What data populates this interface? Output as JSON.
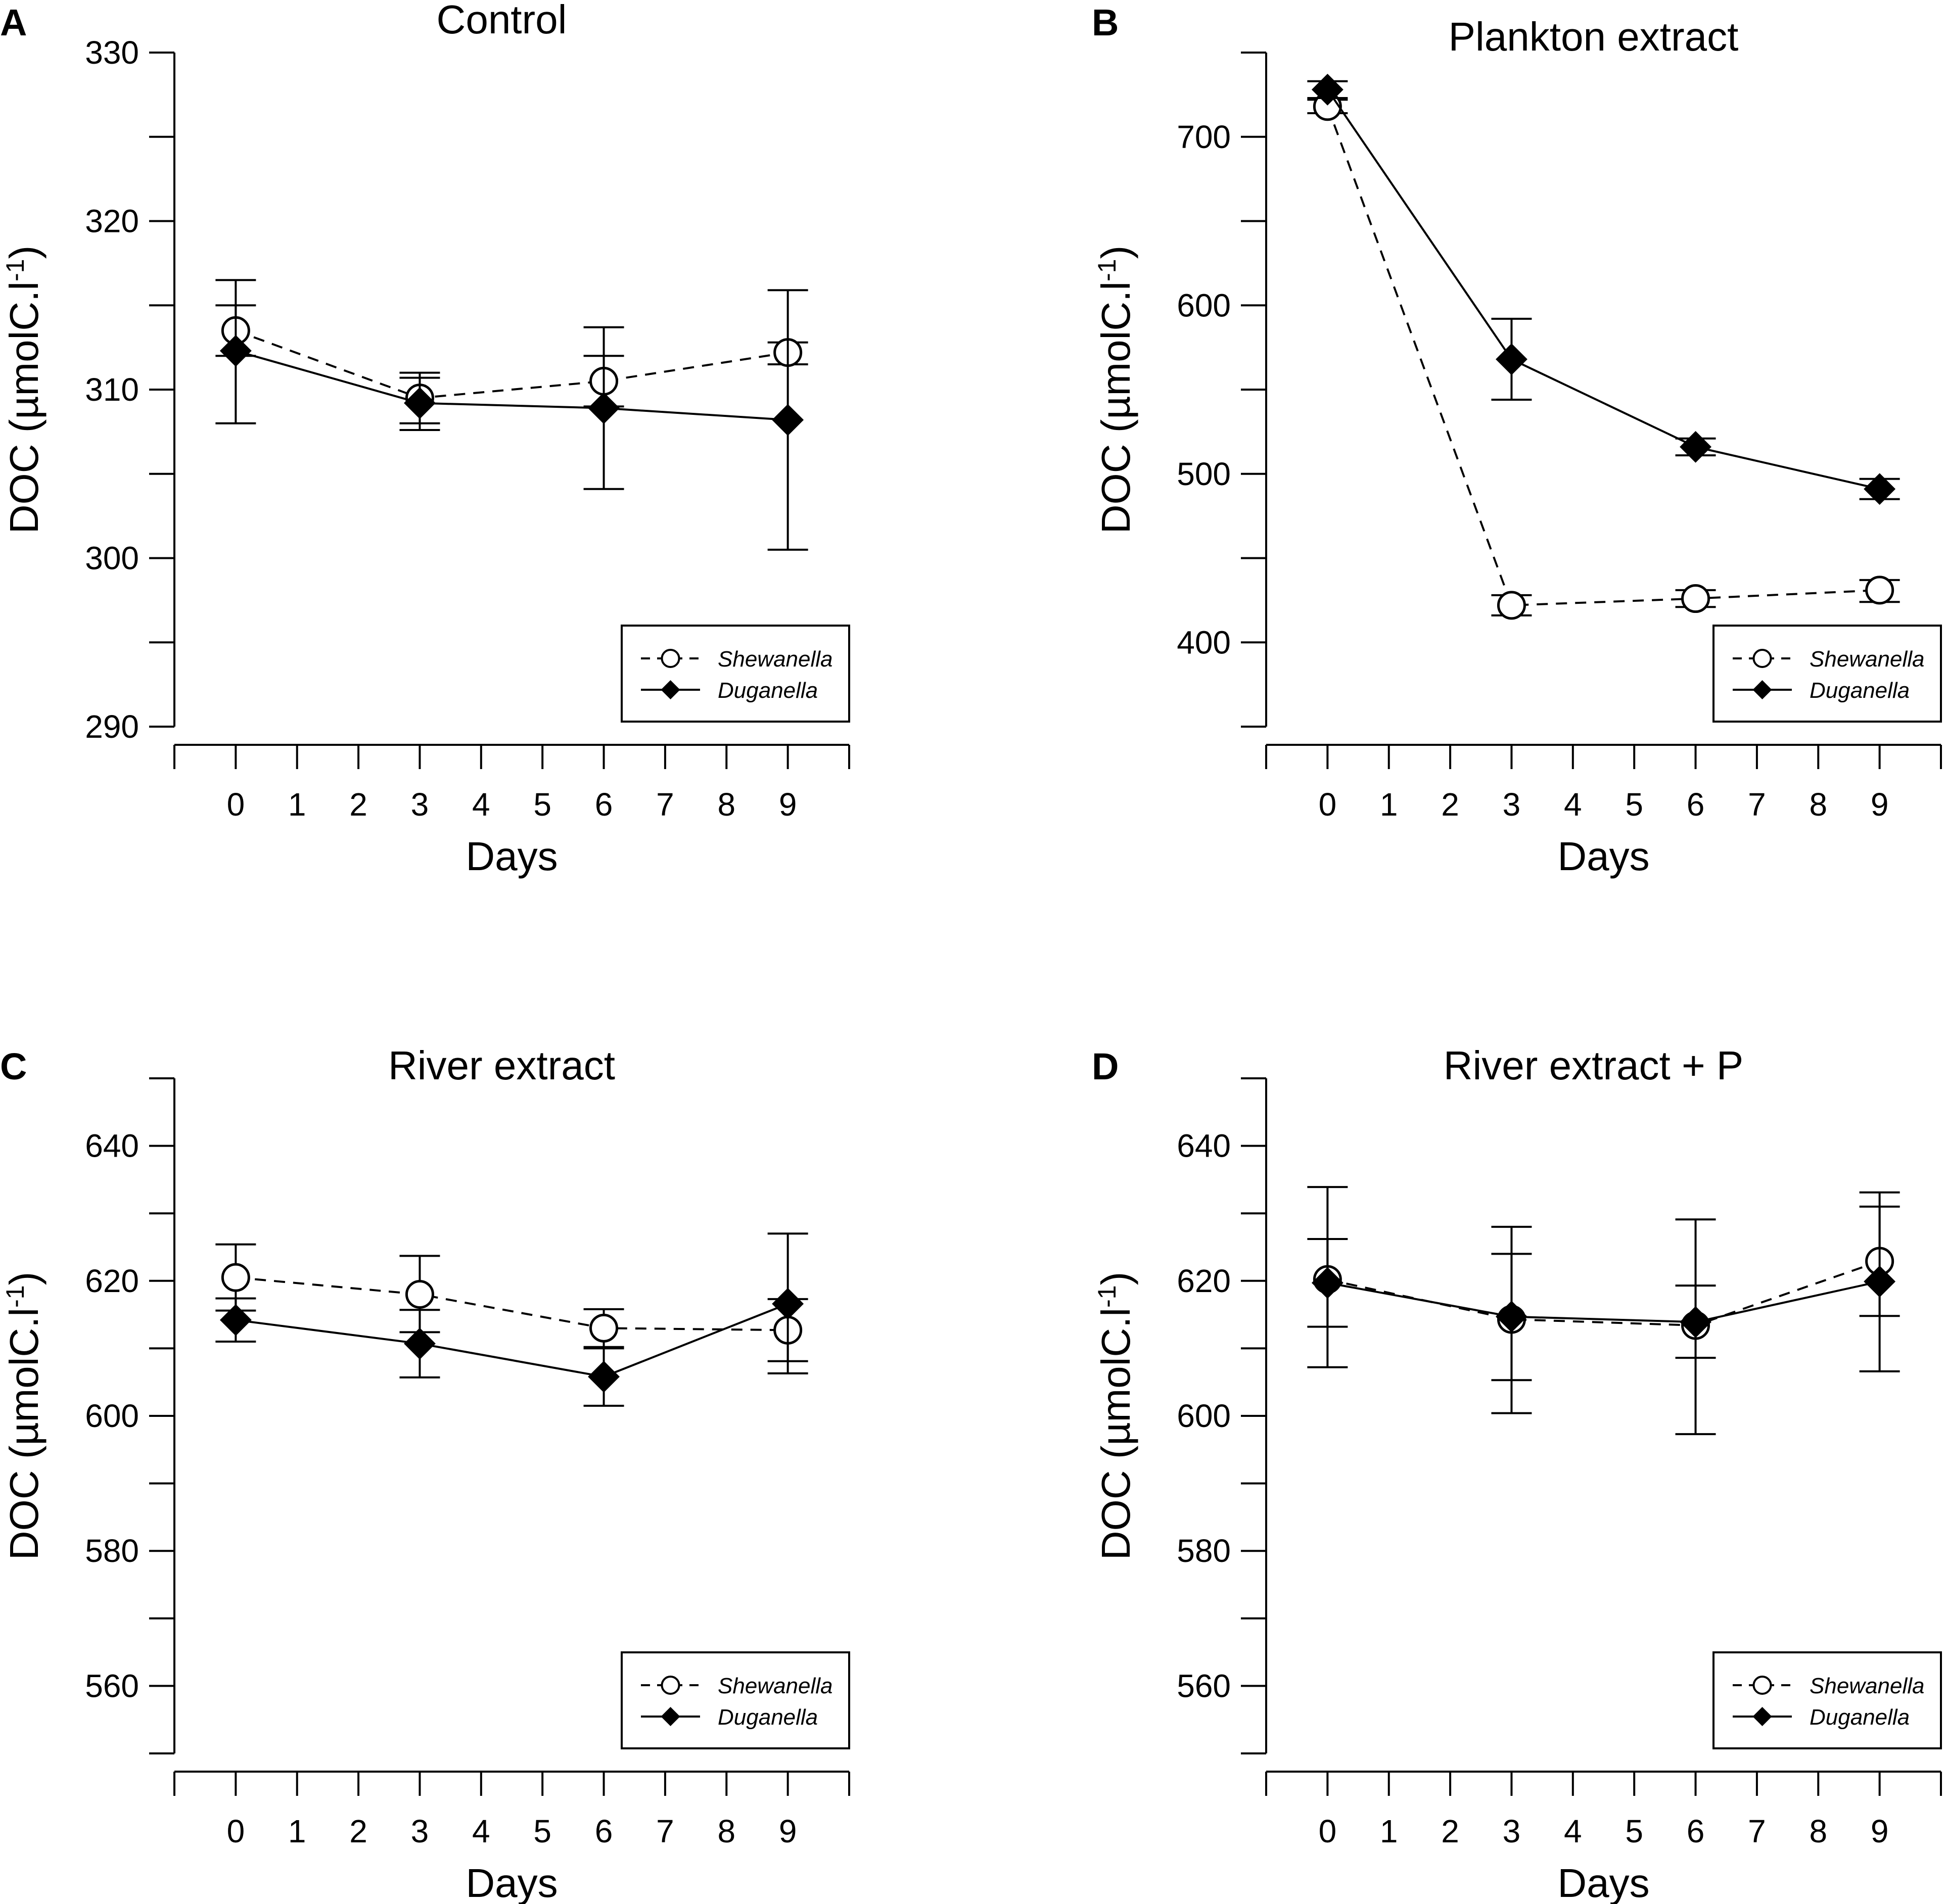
{
  "chart_data": [
    {
      "type": "line",
      "panel_label": "A",
      "title": "Control",
      "xlabel": "Days",
      "ylabel": "DOC (µmolC.l",
      "ylabel_superscript": "-1",
      "ylabel_close": ")",
      "xlim": [
        -1,
        10
      ],
      "ylim": [
        290,
        330
      ],
      "x_ticks": [
        0,
        1,
        2,
        3,
        4,
        5,
        6,
        7,
        8,
        9
      ],
      "y_ticks_labeled": [
        290,
        300,
        310,
        320,
        330
      ],
      "y_ticks_minor": [
        295,
        305,
        315,
        325
      ],
      "legend_position": "bottom-right",
      "series": [
        {
          "name": "Shewanella",
          "marker": "open-circle",
          "line": "dashed",
          "x": [
            0,
            3,
            6,
            9
          ],
          "y": [
            313.5,
            309.5,
            310.5,
            312.2
          ],
          "yerr_low": [
            312.0,
            308.0,
            309.0,
            311.5
          ],
          "yerr_high": [
            315.0,
            311.0,
            312.0,
            312.8
          ]
        },
        {
          "name": "Duganella",
          "marker": "filled-diamond",
          "line": "solid",
          "x": [
            0,
            3,
            6,
            9
          ],
          "y": [
            312.3,
            309.2,
            308.9,
            308.2
          ],
          "yerr_low": [
            308.0,
            307.6,
            304.1,
            300.5
          ],
          "yerr_high": [
            316.5,
            310.7,
            313.7,
            315.9
          ]
        }
      ]
    },
    {
      "type": "line",
      "panel_label": "B",
      "title": "Plankton extract",
      "xlabel": "Days",
      "ylabel": "DOC (µmolC.l",
      "ylabel_superscript": "-1",
      "ylabel_close": ")",
      "xlim": [
        -1,
        10
      ],
      "ylim": [
        350,
        750
      ],
      "x_ticks": [
        0,
        1,
        2,
        3,
        4,
        5,
        6,
        7,
        8,
        9
      ],
      "y_ticks_labeled": [
        400,
        500,
        600,
        700
      ],
      "y_ticks_minor": [
        350,
        450,
        550,
        650,
        750
      ],
      "legend_position": "bottom-right",
      "series": [
        {
          "name": "Shewanella",
          "marker": "open-circle",
          "line": "dashed",
          "x": [
            0,
            3,
            6,
            9
          ],
          "y": [
            718,
            422,
            426,
            431
          ],
          "yerr_low": [
            714,
            416,
            421,
            424
          ],
          "yerr_high": [
            722,
            428,
            431,
            437
          ]
        },
        {
          "name": "Duganella",
          "marker": "filled-diamond",
          "line": "solid",
          "x": [
            0,
            3,
            6,
            9
          ],
          "y": [
            728,
            568,
            516,
            491
          ],
          "yerr_low": [
            723,
            544,
            511,
            485
          ],
          "yerr_high": [
            733,
            592,
            521,
            497
          ]
        }
      ]
    },
    {
      "type": "line",
      "panel_label": "C",
      "title": "River extract",
      "xlabel": "Days",
      "ylabel": "DOC (µmolC.l",
      "ylabel_superscript": "-1",
      "ylabel_close": ")",
      "xlim": [
        -1,
        10
      ],
      "ylim": [
        550,
        650
      ],
      "x_ticks": [
        0,
        1,
        2,
        3,
        4,
        5,
        6,
        7,
        8,
        9
      ],
      "y_ticks_labeled": [
        560,
        580,
        600,
        620,
        640
      ],
      "y_ticks_minor": [
        550,
        570,
        590,
        610,
        630,
        650
      ],
      "legend_position": "bottom-right",
      "series": [
        {
          "name": "Shewanella",
          "marker": "open-circle",
          "line": "dashed",
          "x": [
            0,
            3,
            6,
            9
          ],
          "y": [
            620.5,
            618.0,
            613.0,
            612.7
          ],
          "yerr_low": [
            615.6,
            612.4,
            610.2,
            608.1
          ],
          "yerr_high": [
            625.4,
            623.7,
            615.8,
            617.3
          ]
        },
        {
          "name": "Duganella",
          "marker": "filled-diamond",
          "line": "solid",
          "x": [
            0,
            3,
            6,
            9
          ],
          "y": [
            614.2,
            610.7,
            605.8,
            616.6
          ],
          "yerr_low": [
            611.0,
            605.7,
            601.5,
            606.3
          ],
          "yerr_high": [
            617.4,
            615.7,
            610.0,
            627.0
          ]
        }
      ]
    },
    {
      "type": "line",
      "panel_label": "D",
      "title": "River extract + P",
      "xlabel": "Days",
      "ylabel": "DOC (µmolC.l",
      "ylabel_superscript": "-1",
      "ylabel_close": ")",
      "xlim": [
        -1,
        10
      ],
      "ylim": [
        550,
        650
      ],
      "x_ticks": [
        0,
        1,
        2,
        3,
        4,
        5,
        6,
        7,
        8,
        9
      ],
      "y_ticks_labeled": [
        560,
        580,
        600,
        620,
        640
      ],
      "y_ticks_minor": [
        550,
        570,
        590,
        610,
        630,
        650
      ],
      "legend_position": "bottom-right",
      "series": [
        {
          "name": "Shewanella",
          "marker": "open-circle",
          "line": "dashed",
          "x": [
            0,
            3,
            6,
            9
          ],
          "y": [
            620.2,
            614.3,
            613.4,
            622.9
          ],
          "yerr_low": [
            613.2,
            605.3,
            608.6,
            614.8
          ],
          "yerr_high": [
            626.2,
            624.0,
            619.3,
            631.0
          ]
        },
        {
          "name": "Duganella",
          "marker": "filled-diamond",
          "line": "solid",
          "x": [
            0,
            3,
            6,
            9
          ],
          "y": [
            619.7,
            614.7,
            613.9,
            619.9
          ],
          "yerr_low": [
            607.2,
            600.4,
            597.3,
            606.6
          ],
          "yerr_high": [
            633.9,
            628.0,
            629.1,
            633.1
          ]
        }
      ]
    }
  ]
}
